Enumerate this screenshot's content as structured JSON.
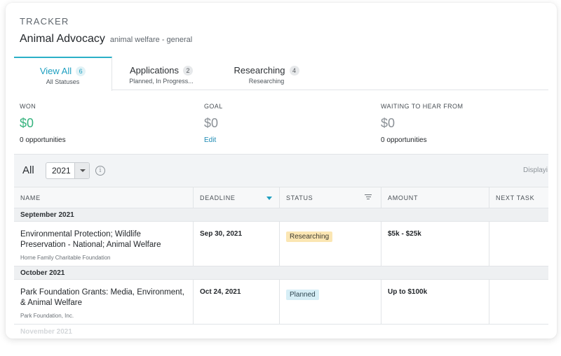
{
  "header": {
    "eyebrow": "TRACKER",
    "title": "Animal Advocacy",
    "subtitle": "animal welfare - general"
  },
  "tabs": [
    {
      "label": "View All",
      "count": "6",
      "sub": "All Statuses",
      "active": true
    },
    {
      "label": "Applications",
      "count": "2",
      "sub": "Planned, In Progress...",
      "active": false
    },
    {
      "label": "Researching",
      "count": "4",
      "sub": "Researching",
      "active": false
    }
  ],
  "stats": {
    "won": {
      "label": "WON",
      "value": "$0",
      "note": "0 opportunities"
    },
    "goal": {
      "label": "GOAL",
      "value": "$0",
      "note": "Edit"
    },
    "waiting": {
      "label": "WAITING TO HEAR FROM",
      "value": "$0",
      "note": "0 opportunities"
    }
  },
  "filter": {
    "label": "All",
    "year": "2021",
    "info_glyph": "i",
    "display_text": "Displayi"
  },
  "table": {
    "columns": [
      "NAME",
      "DEADLINE",
      "STATUS",
      "AMOUNT",
      "NEXT TASK"
    ],
    "groups": [
      {
        "label": "September 2021",
        "rows": [
          {
            "name": "Environmental Protection; Wildlife Preservation - National; Animal Welfare",
            "funder": "Horne Family Charitable Foundation",
            "deadline": "Sep 30, 2021",
            "status": "Researching",
            "amount": "$5k - $25k"
          }
        ]
      },
      {
        "label": "October 2021",
        "rows": [
          {
            "name": "Park Foundation Grants: Media, Environment, & Animal Welfare",
            "funder": "Park Foundation, Inc.",
            "deadline": "Oct 24, 2021",
            "status": "Planned",
            "amount": "Up to $100k"
          }
        ]
      }
    ],
    "next_group_label": "November 2021"
  },
  "colors": {
    "accent": "#1e9fc0",
    "won": "#36b37e",
    "researching_badge": "#fbe6b3",
    "planned_badge": "#d6eef6"
  }
}
